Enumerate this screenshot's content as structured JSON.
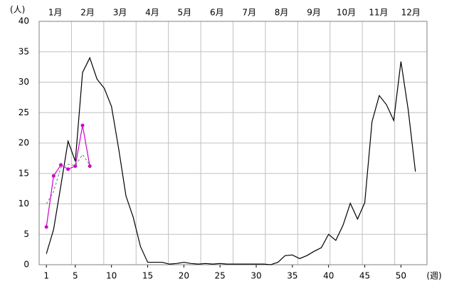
{
  "chart_data": {
    "type": "line",
    "y_label": "(人)",
    "x_label": "(週)",
    "months": [
      "1月",
      "2月",
      "3月",
      "4月",
      "5月",
      "6月",
      "7月",
      "8月",
      "9月",
      "10月",
      "11月",
      "12月"
    ],
    "x": [
      1,
      2,
      3,
      4,
      5,
      6,
      7,
      8,
      9,
      10,
      11,
      12,
      13,
      14,
      15,
      16,
      17,
      18,
      19,
      20,
      21,
      22,
      23,
      24,
      25,
      26,
      27,
      28,
      29,
      30,
      31,
      32,
      33,
      34,
      35,
      36,
      37,
      38,
      39,
      40,
      41,
      42,
      43,
      44,
      45,
      46,
      47,
      48,
      49,
      50,
      51,
      52
    ],
    "series": [
      {
        "color": "#000000",
        "style": "solid",
        "markers": false,
        "values": [
          1.8,
          5.8,
          13,
          20.3,
          17,
          31.6,
          34,
          30.5,
          29,
          26,
          19,
          11.3,
          7.8,
          3,
          0.4,
          0.4,
          0.4,
          0.1,
          0.2,
          0.4,
          0.2,
          0.1,
          0.2,
          0.1,
          0.2,
          0.1,
          0.1,
          0.1,
          0.1,
          0.1,
          0.1,
          0,
          0.4,
          1.5,
          1.6,
          1.0,
          1.5,
          2.2,
          2.8,
          5,
          4,
          6.5,
          10.1,
          7.5,
          10.2,
          23.5,
          27.8,
          26.3,
          23.7,
          33.4,
          25.5,
          15.3
        ]
      },
      {
        "color": "#669966",
        "style": "dashed",
        "markers": false,
        "values": [
          10,
          12,
          16,
          16.5,
          16.3,
          18.1,
          16.4,
          null,
          null,
          null,
          null,
          null,
          null,
          null,
          null,
          null,
          null,
          null,
          null,
          null,
          null,
          null,
          null,
          null,
          null,
          null,
          null,
          null,
          null,
          null,
          null,
          null,
          null,
          null,
          null,
          null,
          null,
          null,
          null,
          null,
          null,
          null,
          null,
          null,
          null,
          null,
          null,
          null,
          null,
          null,
          null,
          null
        ]
      },
      {
        "color": "#cc00cc",
        "style": "solid",
        "markers": true,
        "values": [
          6.2,
          14.6,
          16.4,
          15.7,
          16.2,
          22.9,
          16.2,
          null,
          null,
          null,
          null,
          null,
          null,
          null,
          null,
          null,
          null,
          null,
          null,
          null,
          null,
          null,
          null,
          null,
          null,
          null,
          null,
          null,
          null,
          null,
          null,
          null,
          null,
          null,
          null,
          null,
          null,
          null,
          null,
          null,
          null,
          null,
          null,
          null,
          null,
          null,
          null,
          null,
          null,
          null,
          null,
          null
        ]
      }
    ],
    "xlim": [
      0,
      53.6
    ],
    "xticks": [
      1,
      5,
      10,
      15,
      20,
      25,
      30,
      35,
      40,
      45,
      50
    ],
    "ylim": [
      0,
      40
    ],
    "yticks": [
      0,
      5,
      10,
      15,
      20,
      25,
      30,
      35,
      40
    ],
    "grid": true
  }
}
